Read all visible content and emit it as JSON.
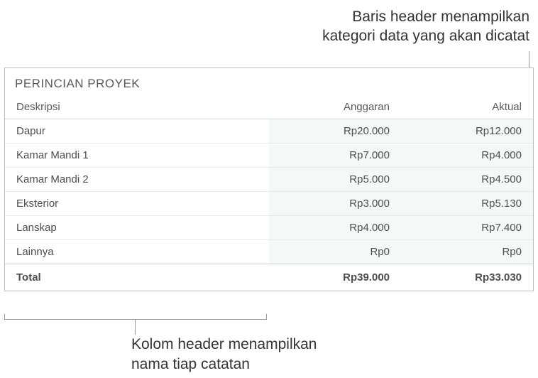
{
  "annotations": {
    "top": "Baris header menampilkan\nkategori data yang akan dicatat",
    "bottom": "Kolom header menampilkan\nnama tiap catatan"
  },
  "table": {
    "title": "PERINCIAN PROYEK",
    "columns": [
      "Deskripsi",
      "Anggaran",
      "Aktual"
    ],
    "rows": [
      {
        "desc": "Dapur",
        "budget": "Rp20.000",
        "actual": "Rp12.000"
      },
      {
        "desc": "Kamar Mandi 1",
        "budget": "Rp7.000",
        "actual": "Rp4.000"
      },
      {
        "desc": "Kamar Mandi 2",
        "budget": "Rp5.000",
        "actual": "Rp4.500"
      },
      {
        "desc": "Eksterior",
        "budget": "Rp3.000",
        "actual": "Rp5.130"
      },
      {
        "desc": "Lanskap",
        "budget": "Rp4.000",
        "actual": "Rp7.400"
      },
      {
        "desc": "Lainnya",
        "budget": "Rp0",
        "actual": "Rp0"
      }
    ],
    "footer": {
      "label": "Total",
      "budget": "Rp39.000",
      "actual": "Rp33.030"
    },
    "colors": {
      "border": "#bfbfbf",
      "row_border": "#e8e8e8",
      "header_border": "#d6d6d6",
      "num_col_bg": "#f4f9f7",
      "text": "#4e4e4e",
      "header_text": "#5a5a5a"
    },
    "column_widths_pct": [
      50,
      25,
      25
    ]
  }
}
